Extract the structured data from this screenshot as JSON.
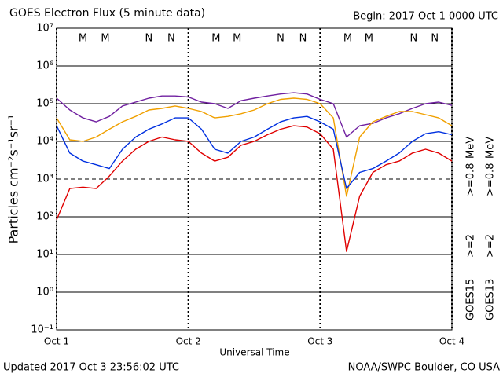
{
  "chart_data": {
    "type": "line",
    "title": "GOES Electron Flux (5 minute data)",
    "begin": "Begin: 2017 Oct 1 0000 UTC",
    "updated": "Updated 2017 Oct  3 23:56:02 UTC",
    "source": "NOAA/SWPC Boulder, CO USA",
    "xlabel": "Universal Time",
    "ylabel": "Particles cm⁻²s⁻¹sr⁻¹",
    "log_y": true,
    "threshold": 1000,
    "xlim": [
      0,
      3
    ],
    "xticks": [
      {
        "value": 0,
        "label": "Oct 1"
      },
      {
        "value": 1,
        "label": "Oct 2"
      },
      {
        "value": 2,
        "label": "Oct 3"
      },
      {
        "value": 3,
        "label": "Oct 4"
      }
    ],
    "ylim": [
      0.1,
      10000000
    ],
    "yticks": [
      {
        "value": 10000000,
        "label": "10⁷"
      },
      {
        "value": 1000000,
        "label": "10⁶"
      },
      {
        "value": 100000,
        "label": "10⁵"
      },
      {
        "value": 10000,
        "label": "10⁴"
      },
      {
        "value": 1000,
        "label": "10³"
      },
      {
        "value": 100,
        "label": "10²"
      },
      {
        "value": 10,
        "label": "10¹"
      },
      {
        "value": 1,
        "label": "10⁰"
      },
      {
        "value": 0.1,
        "label": "10⁻¹"
      }
    ],
    "markers": [
      {
        "label": "M",
        "x": 0.2,
        "color": "#e00000"
      },
      {
        "label": "M",
        "x": 0.37,
        "color": "#0030e0"
      },
      {
        "label": "N",
        "x": 0.7,
        "color": "#e00000"
      },
      {
        "label": "N",
        "x": 0.87,
        "color": "#0030e0"
      },
      {
        "label": "M",
        "x": 1.21,
        "color": "#e00000"
      },
      {
        "label": "M",
        "x": 1.37,
        "color": "#0030e0"
      },
      {
        "label": "N",
        "x": 1.7,
        "color": "#e00000"
      },
      {
        "label": "N",
        "x": 1.87,
        "color": "#0030e0"
      },
      {
        "label": "M",
        "x": 2.21,
        "color": "#e00000"
      },
      {
        "label": "M",
        "x": 2.37,
        "color": "#0030e0"
      },
      {
        "label": "N",
        "x": 2.71,
        "color": "#e00000"
      },
      {
        "label": "N",
        "x": 2.87,
        "color": "#0030e0"
      }
    ],
    "legend_columns": [
      {
        "title": "GOES15",
        "unit": "MeV"
      },
      {
        "title": "GOES13",
        "unit": "MeV"
      }
    ],
    "x": [
      0,
      0.1,
      0.2,
      0.3,
      0.4,
      0.5,
      0.6,
      0.7,
      0.8,
      0.9,
      1,
      1.1,
      1.2,
      1.3,
      1.4,
      1.5,
      1.6,
      1.7,
      1.8,
      1.9,
      2,
      2.1,
      2.2,
      2.3,
      2.4,
      2.5,
      2.6,
      2.7,
      2.8,
      2.9,
      3
    ],
    "series": [
      {
        "name": ">=0.8",
        "column": 0,
        "color": "#7020a0",
        "values": [
          140000,
          68000,
          42000,
          33000,
          46000,
          87000,
          110000,
          140000,
          160000,
          160000,
          150000,
          110000,
          100000,
          75000,
          120000,
          140000,
          160000,
          180000,
          195000,
          180000,
          130000,
          100000,
          13000,
          26000,
          30000,
          42000,
          54000,
          75000,
          100000,
          110000,
          90000
        ]
      },
      {
        "name": ">=0.8",
        "column": 1,
        "color": "#f0a000",
        "values": [
          42000,
          11000,
          10000,
          13000,
          21000,
          33000,
          46000,
          68000,
          75000,
          87000,
          75000,
          62000,
          42000,
          46000,
          54000,
          68000,
          100000,
          130000,
          140000,
          130000,
          100000,
          42000,
          350,
          13000,
          33000,
          46000,
          62000,
          62000,
          51000,
          42000,
          26000
        ]
      },
      {
        "name": ">=2",
        "column": 0,
        "color": "#0030e0",
        "values": [
          26000,
          4900,
          3000,
          2400,
          1900,
          6200,
          13000,
          21000,
          29000,
          42000,
          42000,
          21000,
          6200,
          4900,
          10000,
          13000,
          21000,
          33000,
          42000,
          46000,
          33000,
          21000,
          560,
          1500,
          1900,
          3000,
          4900,
          10000,
          16000,
          18000,
          15000
        ]
      },
      {
        "name": ">=2",
        "column": 1,
        "color": "#e00000",
        "values": [
          83,
          560,
          610,
          560,
          1200,
          3000,
          6200,
          10000,
          13000,
          11000,
          10000,
          4900,
          3000,
          3800,
          7900,
          10000,
          15000,
          21000,
          26000,
          24000,
          16000,
          6200,
          12,
          350,
          1500,
          2400,
          3000,
          4900,
          6200,
          4900,
          3000
        ]
      }
    ]
  }
}
